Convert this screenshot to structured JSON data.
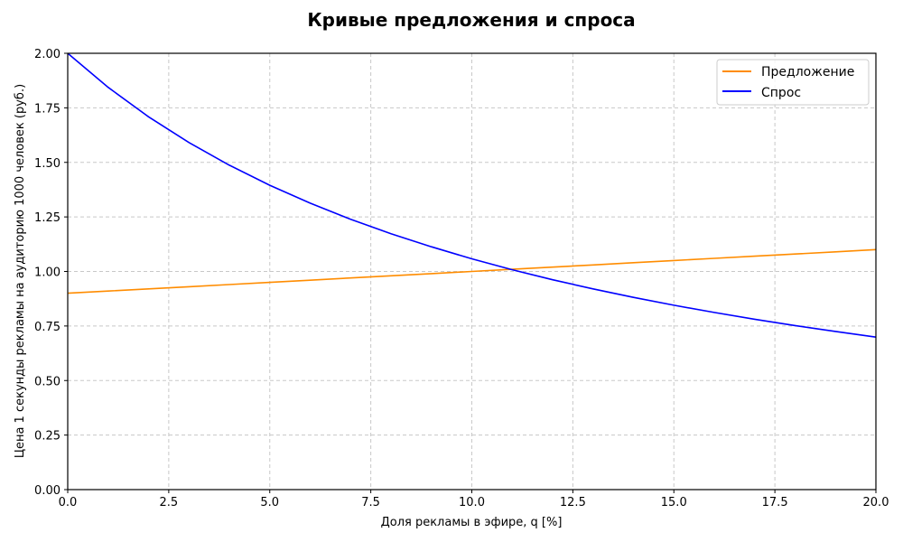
{
  "chart_data": {
    "type": "line",
    "title": "Кривые предложения и спроса",
    "xlabel": "Доля рекламы в эфире, q [%]",
    "ylabel": "Цена 1 секунды рекламы на аудиторию 1000 человек (руб.)",
    "xlim": [
      0,
      20
    ],
    "ylim": [
      0,
      2
    ],
    "x_ticks": [
      "0.0",
      "2.5",
      "5.0",
      "7.5",
      "10.0",
      "12.5",
      "15.0",
      "17.5",
      "20.0"
    ],
    "y_ticks": [
      "0.00",
      "0.25",
      "0.50",
      "0.75",
      "1.00",
      "1.25",
      "1.50",
      "1.75",
      "2.00"
    ],
    "grid": true,
    "grid_style": "dashed",
    "legend_position": "upper right",
    "x": [
      0,
      1,
      2,
      3,
      4,
      5,
      6,
      7,
      8,
      9,
      10,
      11,
      12,
      13,
      14,
      15,
      16,
      17,
      18,
      19,
      20
    ],
    "series": [
      {
        "name": "Предложение",
        "color": "#ff8c00",
        "values": [
          0.9,
          0.91,
          0.92,
          0.93,
          0.94,
          0.95,
          0.96,
          0.97,
          0.98,
          0.99,
          1.0,
          1.01,
          1.02,
          1.03,
          1.04,
          1.05,
          1.06,
          1.07,
          1.08,
          1.09,
          1.1
        ]
      },
      {
        "name": "Спрос",
        "color": "#0000ff",
        "values": [
          2.0,
          1.844,
          1.709,
          1.591,
          1.487,
          1.395,
          1.313,
          1.239,
          1.173,
          1.113,
          1.058,
          1.008,
          0.962,
          0.92,
          0.881,
          0.845,
          0.812,
          0.781,
          0.752,
          0.725,
          0.699
        ]
      }
    ]
  }
}
